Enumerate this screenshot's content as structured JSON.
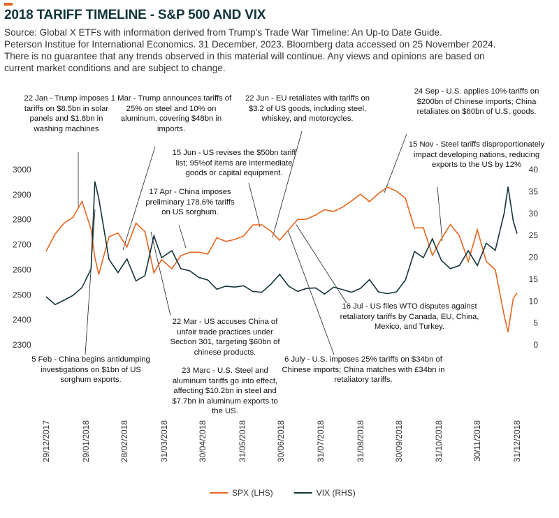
{
  "chart_data": {
    "type": "line",
    "title": "2018 TARIFF TIMELINE - S&P 500 AND VIX",
    "subtitle": [
      "Source: Global X ETFs with information derived from Trump's Trade War Timeline: An Up-to Date Guide.",
      "Peterson Institue for International Economics. 31 December, 2023. Bloomberg data accessed on 25 November 2024.",
      "There is no guarantee that any trends observed in this material will continue. Any views and opinions are based on",
      "current market conditions and are subject to change."
    ],
    "x": [
      "29/12/2017",
      "05/01/2018",
      "12/01/2018",
      "19/01/2018",
      "26/01/2018",
      "02/02/2018",
      "05/02/2018",
      "08/02/2018",
      "16/02/2018",
      "23/02/2018",
      "02/03/2018",
      "09/03/2018",
      "16/03/2018",
      "23/03/2018",
      "29/03/2018",
      "06/04/2018",
      "13/04/2018",
      "20/04/2018",
      "27/04/2018",
      "04/05/2018",
      "11/05/2018",
      "18/05/2018",
      "25/05/2018",
      "01/06/2018",
      "08/06/2018",
      "15/06/2018",
      "22/06/2018",
      "29/06/2018",
      "06/07/2018",
      "13/07/2018",
      "20/07/2018",
      "27/07/2018",
      "03/08/2018",
      "10/08/2018",
      "17/08/2018",
      "24/08/2018",
      "31/08/2018",
      "07/09/2018",
      "14/09/2018",
      "21/09/2018",
      "28/09/2018",
      "05/10/2018",
      "12/10/2018",
      "19/10/2018",
      "26/10/2018",
      "02/11/2018",
      "09/11/2018",
      "16/11/2018",
      "23/11/2018",
      "30/11/2018",
      "07/12/2018",
      "14/12/2018",
      "21/12/2018",
      "24/12/2018",
      "28/12/2018",
      "31/12/2018"
    ],
    "series": [
      {
        "name": "SPX (LHS)",
        "color": "#e8641e",
        "axis": "y",
        "values": [
          2674,
          2743,
          2786,
          2810,
          2873,
          2762,
          2649,
          2581,
          2732,
          2747,
          2691,
          2786,
          2752,
          2588,
          2641,
          2604,
          2656,
          2670,
          2670,
          2663,
          2728,
          2713,
          2721,
          2735,
          2779,
          2780,
          2755,
          2718,
          2760,
          2801,
          2802,
          2819,
          2840,
          2833,
          2850,
          2875,
          2902,
          2872,
          2905,
          2930,
          2914,
          2886,
          2767,
          2768,
          2658,
          2723,
          2781,
          2736,
          2633,
          2760,
          2633,
          2600,
          2417,
          2351,
          2486,
          2507
        ]
      },
      {
        "name": "VIX (RHS)",
        "color": "#12343b",
        "axis": "y2",
        "values": [
          11.0,
          9.2,
          10.2,
          11.3,
          13.1,
          17.3,
          37.3,
          33.5,
          19.5,
          16.5,
          19.6,
          14.6,
          15.8,
          24.9,
          19.9,
          21.5,
          17.4,
          16.9,
          15.4,
          14.8,
          12.7,
          13.4,
          13.2,
          13.5,
          12.2,
          12.0,
          13.8,
          16.1,
          13.4,
          12.2,
          12.9,
          13.0,
          11.6,
          13.2,
          12.6,
          12.0,
          12.9,
          14.9,
          12.1,
          11.7,
          12.1,
          14.8,
          21.3,
          19.9,
          24.2,
          19.3,
          17.4,
          18.1,
          21.5,
          18.1,
          23.2,
          21.6,
          30.1,
          36.1,
          28.3,
          25.4
        ]
      }
    ],
    "xticks": [
      "29/12/2017",
      "29/01/2018",
      "28/02/2018",
      "31/03/2018",
      "30/04/2018",
      "31/05/2018",
      "30/06/2018",
      "31/07/2018",
      "31/08/2018",
      "30/09/2018",
      "31/10/2018",
      "30/11/2018",
      "31/12/2018"
    ],
    "ylim": [
      2300,
      3000
    ],
    "yticks": [
      2300,
      2400,
      2500,
      2600,
      2700,
      2800,
      2900,
      3000
    ],
    "y2lim": [
      0,
      40
    ],
    "y2ticks": [
      0,
      5,
      10,
      15,
      20,
      25,
      30,
      35,
      40
    ],
    "grid": false,
    "legend": "bottom",
    "annotations": [
      "22 Jan - Trump imposes tariffs on $8.5bn in solar panels and $1.8bn in washing machines",
      "1 Mar - Trump announces tariffs of 25% on steel and 10% on aluminum, covering $48bn in imports.",
      "22 Jun - EU retaliates with tariffs on $3.2 of US goods, including steel, whiskey, and motorcycles.",
      "24 Sep - U.S. applies 10% tariffs on $200bn of Chinese imports; China retaliates on $60bn of U.S. goods.",
      "15 Jun - US revises the $50bn tariff list; 95%of items are intermediate goods or capital equipment.",
      "15 Nov - Steel tariffs disproportionately impact developing nations, reducing exports to the US by 12%",
      "17 Apr - China imposes preliminary 178.6% tariffs on US sorghum.",
      "22 Mar - US accuses China of unfair trade practices under Section 301, targeting $60bn of chinese products.",
      "23 Marc - U.S. Steel and aluminum tariffs go into effect, affecting $10.2bn in steel and $7.7bn in aluminum exports to the US.",
      "16 Jul - US files WTO disputes against retaliatory tariffs by Canada, EU, China, Mexico, and Turkey.",
      "5 Feb - China begins antidumping investigations on $1bn of US sorghum exports.",
      "6 July - U.S. imposes 25% tariffs on $34bn of Chinese imports; China matches with £34bn in retaliatory tariffs."
    ]
  }
}
